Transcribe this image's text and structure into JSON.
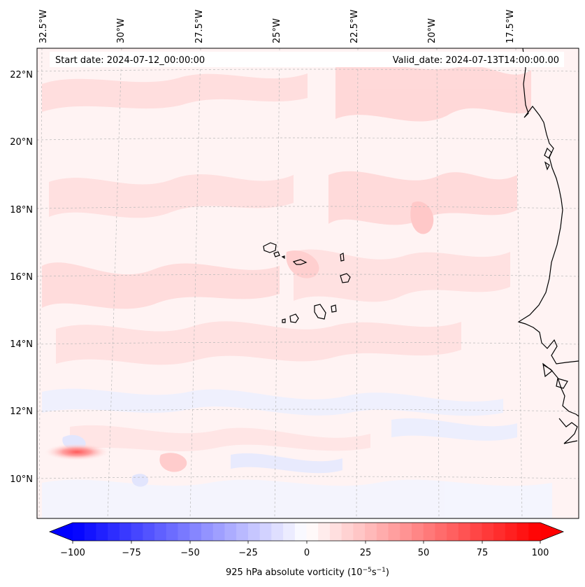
{
  "header": {
    "start_date": "Start date: 2024-07-12_00:00:00",
    "valid_date": "Valid_date: 2024-07-13T14:00:00.00"
  },
  "map": {
    "lon_labels": [
      "32.5°W",
      "30°W",
      "27.5°W",
      "25°W",
      "22.5°W",
      "20°W",
      "17.5°W"
    ],
    "lat_labels": [
      "22°N",
      "20°N",
      "18°N",
      "16°N",
      "14°N",
      "12°N",
      "10°N"
    ],
    "field": "925 hPa absolute vorticity",
    "colormap": "bwr",
    "colors": {
      "negative": "#0000ff",
      "zero": "#ffffff",
      "positive": "#ff0000"
    }
  },
  "colorbar": {
    "ticks": [
      "−100",
      "−75",
      "−50",
      "−25",
      "0",
      "25",
      "50",
      "75",
      "100"
    ],
    "min": -100,
    "max": 100,
    "label_main": "925 hPa absolute vorticity (10",
    "label_exp1": "−5",
    "label_mid": "s",
    "label_exp2": "−1",
    "label_end": ")"
  }
}
